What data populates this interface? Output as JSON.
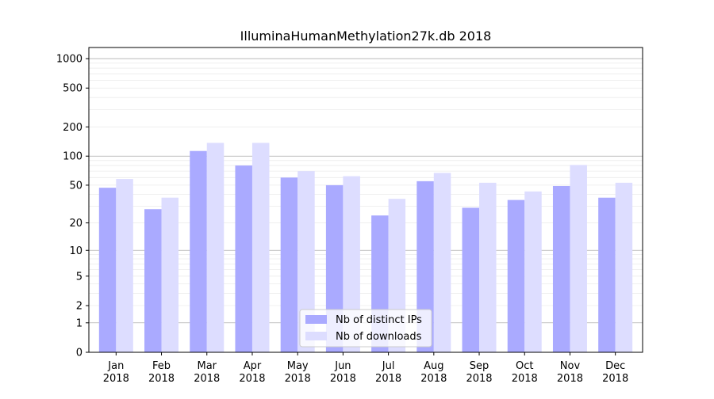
{
  "chart_data": {
    "type": "bar",
    "title": "IlluminaHumanMethylation27k.db 2018",
    "xlabel": "",
    "ylabel": "",
    "yscale": "log(1+y)",
    "ylim": [
      0,
      1300
    ],
    "yticks": [
      0,
      1,
      2,
      5,
      10,
      20,
      50,
      100,
      200,
      500,
      1000
    ],
    "grid": "major lines dark grey, minor lines light grey",
    "legend_position": "lower center",
    "categories": [
      "Jan\n2018",
      "Feb\n2018",
      "Mar\n2018",
      "Apr\n2018",
      "May\n2018",
      "Jun\n2018",
      "Jul\n2018",
      "Aug\n2018",
      "Sep\n2018",
      "Oct\n2018",
      "Nov\n2018",
      "Dec\n2018"
    ],
    "series": [
      {
        "name": "Nb of distinct IPs",
        "color": "#aaaaff",
        "values": [
          47,
          28,
          113,
          80,
          60,
          50,
          24,
          55,
          29,
          35,
          49,
          37
        ]
      },
      {
        "name": "Nb of downloads",
        "color": "#ddddff",
        "values": [
          58,
          37,
          137,
          137,
          70,
          62,
          36,
          67,
          53,
          43,
          81,
          53
        ]
      }
    ]
  }
}
